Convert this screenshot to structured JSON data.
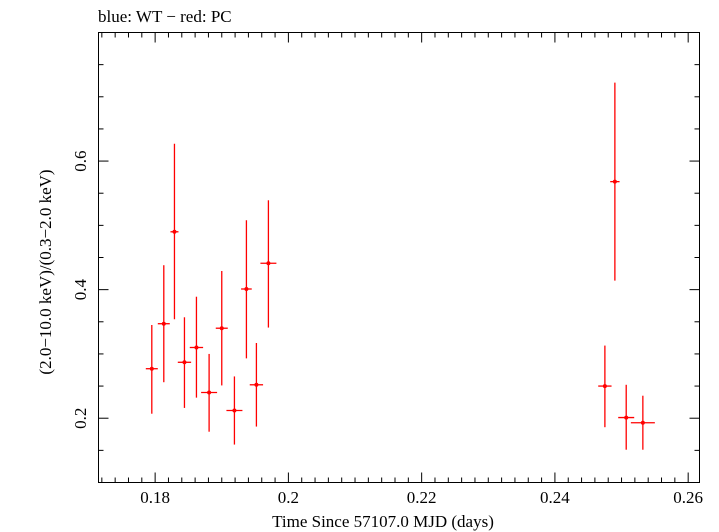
{
  "chart_data": {
    "type": "scatter",
    "title": "blue: WT − red: PC",
    "xlabel": "Time Since 57107.0 MJD (days)",
    "ylabel": "(2.0−10.0 keV)/(0.3−2.0 keV)",
    "xlim": [
      0.1715,
      0.2617
    ],
    "ylim": [
      0.1,
      0.8
    ],
    "x_ticks": [
      0.18,
      0.2,
      0.22,
      0.24,
      0.26
    ],
    "x_tick_labels": [
      "0.18",
      "0.2",
      "0.22",
      "0.24",
      "0.26"
    ],
    "y_ticks": [
      0.2,
      0.4,
      0.6
    ],
    "y_tick_labels": [
      "0.2",
      "0.4",
      "0.6"
    ],
    "grid": false,
    "series": [
      {
        "color": "#ff0000",
        "points": [
          {
            "x": 0.1795,
            "xerr": 0.0009,
            "y": 0.277,
            "yerr_low": 0.07,
            "yerr_high": 0.068
          },
          {
            "x": 0.1813,
            "xerr": 0.0009,
            "y": 0.347,
            "yerr_low": 0.091,
            "yerr_high": 0.091
          },
          {
            "x": 0.1829,
            "xerr": 0.0006,
            "y": 0.49,
            "yerr_low": 0.136,
            "yerr_high": 0.137
          },
          {
            "x": 0.1844,
            "xerr": 0.001,
            "y": 0.287,
            "yerr_low": 0.071,
            "yerr_high": 0.07
          },
          {
            "x": 0.1862,
            "xerr": 0.001,
            "y": 0.31,
            "yerr_low": 0.078,
            "yerr_high": 0.079
          },
          {
            "x": 0.1881,
            "xerr": 0.0012,
            "y": 0.24,
            "yerr_low": 0.061,
            "yerr_high": 0.06
          },
          {
            "x": 0.19,
            "xerr": 0.0009,
            "y": 0.34,
            "yerr_low": 0.089,
            "yerr_high": 0.089
          },
          {
            "x": 0.1919,
            "xerr": 0.0012,
            "y": 0.212,
            "yerr_low": 0.053,
            "yerr_high": 0.053
          },
          {
            "x": 0.1937,
            "xerr": 0.0008,
            "y": 0.401,
            "yerr_low": 0.108,
            "yerr_high": 0.107
          },
          {
            "x": 0.1952,
            "xerr": 0.001,
            "y": 0.252,
            "yerr_low": 0.065,
            "yerr_high": 0.065
          },
          {
            "x": 0.197,
            "xerr": 0.0012,
            "y": 0.441,
            "yerr_low": 0.1,
            "yerr_high": 0.098
          },
          {
            "x": 0.2475,
            "xerr": 0.001,
            "y": 0.25,
            "yerr_low": 0.064,
            "yerr_high": 0.063
          },
          {
            "x": 0.249,
            "xerr": 0.0007,
            "y": 0.568,
            "yerr_low": 0.154,
            "yerr_high": 0.154
          },
          {
            "x": 0.2507,
            "xerr": 0.0012,
            "y": 0.201,
            "yerr_low": 0.05,
            "yerr_high": 0.051
          },
          {
            "x": 0.2532,
            "xerr": 0.0018,
            "y": 0.193,
            "yerr_low": 0.042,
            "yerr_high": 0.042
          }
        ]
      }
    ]
  }
}
